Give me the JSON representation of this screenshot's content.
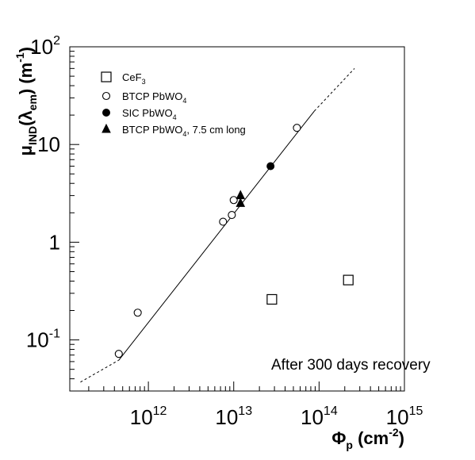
{
  "chart_data": {
    "type": "scatter",
    "x_scale": "log",
    "y_scale": "log",
    "xlim": [
      120000000000.0,
      1000000000000000.0
    ],
    "ylim": [
      0.03,
      100
    ],
    "grid": false,
    "legend_position": "top-left",
    "xlabel": {
      "base": "Φ",
      "sub": "p",
      "rest": " (cm",
      "exp": "-2",
      "end": ")"
    },
    "ylabel": {
      "base": "μ",
      "sub": "IND",
      "mid": "(λ",
      "sub2": "em",
      "rest": ") (m",
      "exp": "-1",
      "end": ")"
    },
    "x_ticks": [
      {
        "value": 1000000000000.0,
        "base": "10",
        "exp": "12"
      },
      {
        "value": 10000000000000.0,
        "base": "10",
        "exp": "13"
      },
      {
        "value": 100000000000000.0,
        "base": "10",
        "exp": "14"
      },
      {
        "value": 1000000000000000.0,
        "base": "10",
        "exp": "15"
      }
    ],
    "y_ticks": [
      {
        "value": 0.1,
        "base": "10",
        "exp": "-1"
      },
      {
        "value": 1,
        "base": "1",
        "exp": ""
      },
      {
        "value": 10,
        "base": "10",
        "exp": ""
      },
      {
        "value": 100,
        "base": "10",
        "exp": "2"
      }
    ],
    "annotation": "After 300 days recovery",
    "series": [
      {
        "name": {
          "base": "CeF",
          "sub": "3",
          "rest": ""
        },
        "marker": "open-square",
        "points": [
          {
            "x": 28000000000000.0,
            "y": 0.26
          },
          {
            "x": 220000000000000.0,
            "y": 0.41
          }
        ]
      },
      {
        "name": {
          "base": "BTCP PbWO",
          "sub": "4",
          "rest": ""
        },
        "marker": "open-circle",
        "points": [
          {
            "x": 450000000000.0,
            "y": 0.072
          },
          {
            "x": 750000000000.0,
            "y": 0.19
          },
          {
            "x": 7500000000000.0,
            "y": 1.62
          },
          {
            "x": 9500000000000.0,
            "y": 1.9
          },
          {
            "x": 10000000000000.0,
            "y": 2.7
          },
          {
            "x": 55000000000000.0,
            "y": 14.8
          }
        ]
      },
      {
        "name": {
          "base": "SIC PbWO",
          "sub": "4",
          "rest": ""
        },
        "marker": "filled-circle",
        "points": [
          {
            "x": 27000000000000.0,
            "y": 6.0
          }
        ]
      },
      {
        "name": {
          "base": "BTCP PbWO",
          "sub": "4",
          "rest": ", 7.5 cm long"
        },
        "marker": "filled-triangle",
        "points": [
          {
            "x": 12000000000000.0,
            "y": 3.0
          },
          {
            "x": 12000000000000.0,
            "y": 2.5
          }
        ]
      }
    ],
    "fit_line": {
      "solid": [
        {
          "x": 450000000000.0,
          "y": 0.062
        },
        {
          "x": 88000000000000.0,
          "y": 22
        }
      ],
      "dashed_low": [
        {
          "x": 160000000000.0,
          "y": 0.037
        },
        {
          "x": 450000000000.0,
          "y": 0.062
        }
      ],
      "dashed_high": [
        {
          "x": 88000000000000.0,
          "y": 22
        },
        {
          "x": 260000000000000.0,
          "y": 60
        }
      ]
    }
  }
}
